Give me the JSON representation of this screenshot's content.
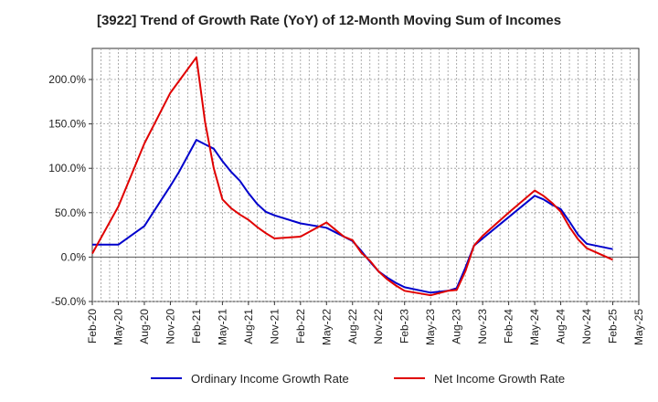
{
  "chart_data": {
    "type": "line",
    "title": "[3922]  Trend of Growth Rate (YoY) of 12-Month Moving Sum of Incomes",
    "xlabel": "",
    "ylabel": "",
    "ylim": [
      -50,
      235
    ],
    "y_ticks": [
      -50,
      0,
      50,
      100,
      150,
      200
    ],
    "y_tick_labels": [
      "-50.0%",
      "0.0%",
      "50.0%",
      "100.0%",
      "150.0%",
      "200.0%"
    ],
    "x_tick_labels": [
      "Feb-20",
      "May-20",
      "Aug-20",
      "Nov-20",
      "Feb-21",
      "May-21",
      "Aug-21",
      "Nov-21",
      "Feb-22",
      "May-22",
      "Aug-22",
      "Nov-22",
      "Feb-23",
      "May-23",
      "Aug-23",
      "Nov-23",
      "Feb-24",
      "May-24",
      "Aug-24",
      "Nov-24",
      "Feb-25",
      "May-25"
    ],
    "x_start": "2020-02",
    "x_end": "2025-05",
    "grid": true,
    "legend_placement": "bottom",
    "series": [
      {
        "name": "Ordinary Income Growth Rate",
        "color": "#0000cc",
        "points": [
          [
            "2020-02",
            14
          ],
          [
            "2020-05",
            14
          ],
          [
            "2020-08",
            35
          ],
          [
            "2020-09",
            50
          ],
          [
            "2020-10",
            65
          ],
          [
            "2020-11",
            80
          ],
          [
            "2020-12",
            96
          ],
          [
            "2021-01",
            114
          ],
          [
            "2021-02",
            132
          ],
          [
            "2021-03",
            127
          ],
          [
            "2021-04",
            122
          ],
          [
            "2021-05",
            108
          ],
          [
            "2021-06",
            96
          ],
          [
            "2021-07",
            86
          ],
          [
            "2021-08",
            72
          ],
          [
            "2021-09",
            60
          ],
          [
            "2021-10",
            51
          ],
          [
            "2021-11",
            47
          ],
          [
            "2022-02",
            38
          ],
          [
            "2022-05",
            33
          ],
          [
            "2022-06",
            28
          ],
          [
            "2022-07",
            23
          ],
          [
            "2022-08",
            18
          ],
          [
            "2022-09",
            7
          ],
          [
            "2022-10",
            -5
          ],
          [
            "2022-11",
            -16
          ],
          [
            "2022-12",
            -23
          ],
          [
            "2023-01",
            -29
          ],
          [
            "2023-02",
            -34
          ],
          [
            "2023-05",
            -40
          ],
          [
            "2023-07",
            -38
          ],
          [
            "2023-08",
            -35
          ],
          [
            "2023-09",
            -12
          ],
          [
            "2023-10",
            13
          ],
          [
            "2023-11",
            21
          ],
          [
            "2024-02",
            45
          ],
          [
            "2024-05",
            69
          ],
          [
            "2024-06",
            65
          ],
          [
            "2024-07",
            59
          ],
          [
            "2024-08",
            54
          ],
          [
            "2024-09",
            40
          ],
          [
            "2024-10",
            25
          ],
          [
            "2024-11",
            15
          ],
          [
            "2025-02",
            9
          ]
        ]
      },
      {
        "name": "Net Income Growth Rate",
        "color": "#e00000",
        "points": [
          [
            "2020-02",
            4
          ],
          [
            "2020-05",
            57
          ],
          [
            "2020-08",
            128
          ],
          [
            "2020-11",
            185
          ],
          [
            "2021-02",
            225
          ],
          [
            "2021-03",
            152
          ],
          [
            "2021-04",
            100
          ],
          [
            "2021-05",
            65
          ],
          [
            "2021-06",
            55
          ],
          [
            "2021-07",
            48
          ],
          [
            "2021-08",
            42
          ],
          [
            "2021-09",
            34
          ],
          [
            "2021-10",
            27
          ],
          [
            "2021-11",
            21
          ],
          [
            "2022-02",
            23
          ],
          [
            "2022-05",
            39
          ],
          [
            "2022-06",
            31
          ],
          [
            "2022-07",
            23
          ],
          [
            "2022-08",
            19
          ],
          [
            "2022-09",
            5
          ],
          [
            "2022-10",
            -4
          ],
          [
            "2022-11",
            -16
          ],
          [
            "2022-12",
            -25
          ],
          [
            "2023-01",
            -32
          ],
          [
            "2023-02",
            -38
          ],
          [
            "2023-05",
            -43
          ],
          [
            "2023-07",
            -38
          ],
          [
            "2023-08",
            -37
          ],
          [
            "2023-09",
            -16
          ],
          [
            "2023-10",
            13
          ],
          [
            "2023-11",
            24
          ],
          [
            "2024-02",
            50
          ],
          [
            "2024-05",
            75
          ],
          [
            "2024-06",
            69
          ],
          [
            "2024-07",
            61
          ],
          [
            "2024-08",
            51
          ],
          [
            "2024-09",
            34
          ],
          [
            "2024-10",
            20
          ],
          [
            "2024-11",
            10
          ],
          [
            "2025-02",
            -3
          ]
        ]
      }
    ]
  }
}
